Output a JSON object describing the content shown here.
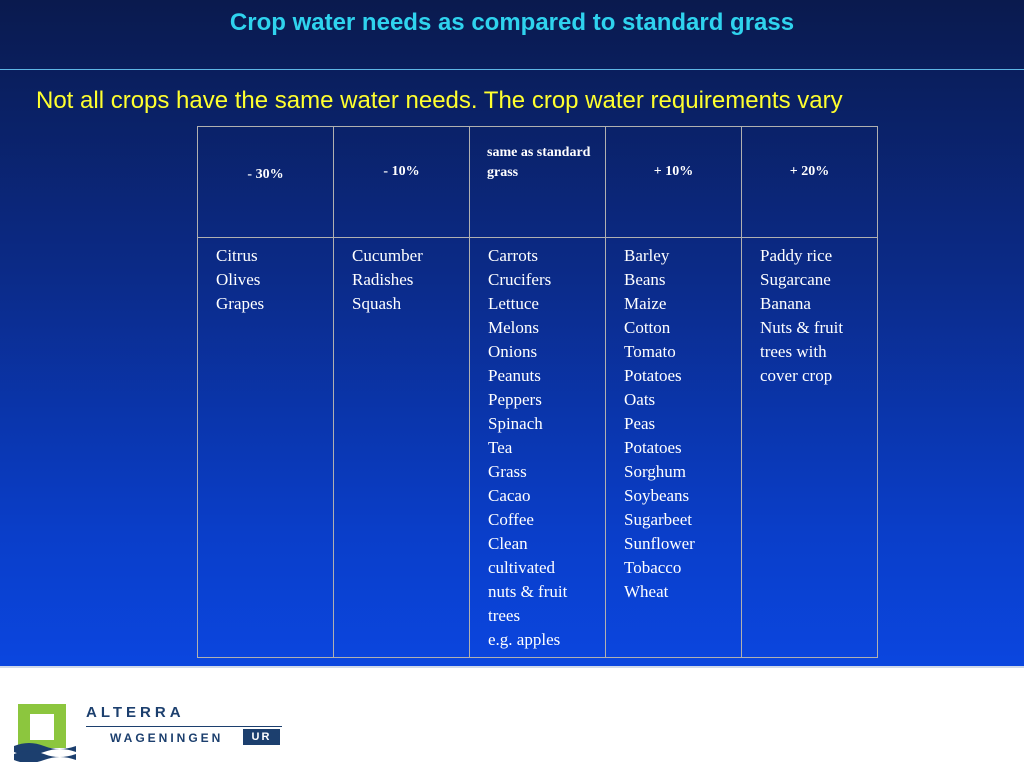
{
  "slide": {
    "title": "Crop water needs as compared to standard grass",
    "subtitle": "Not all crops have the same water needs. The crop water requirements vary"
  },
  "table": {
    "headers": [
      "- 30%",
      "- 10%",
      "same as standard grass",
      "+ 10%",
      "+ 20%"
    ],
    "columns": [
      [
        "Citrus",
        "Olives",
        "Grapes"
      ],
      [
        "Cucumber",
        "Radishes",
        "Squash"
      ],
      [
        "Carrots",
        "Crucifers",
        "Lettuce",
        "Melons",
        "Onions",
        "Peanuts",
        "Peppers",
        "Spinach",
        "Tea",
        "Grass",
        "Cacao",
        "Coffee",
        "Clean",
        "cultivated",
        "nuts & fruit",
        "trees",
        "e.g. apples"
      ],
      [
        "Barley",
        "Beans",
        "Maize",
        "Cotton",
        "Tomato",
        "Potatoes",
        "Oats",
        "Peas",
        "Potatoes",
        "Sorghum",
        "Soybeans",
        "Sugarbeet",
        "Sunflower",
        "Tobacco",
        "Wheat"
      ],
      [
        "Paddy rice",
        "Sugarcane",
        "Banana",
        "Nuts & fruit",
        "trees with",
        "cover crop"
      ]
    ]
  },
  "footer": {
    "logo_name": "ALTERRA",
    "logo_org": "WAGENINGEN",
    "logo_ur": "UR",
    "brand_color": "#1c3f6e",
    "logo_green": "#8cc63e",
    "logo_icon": "alterra-logo-icon"
  }
}
